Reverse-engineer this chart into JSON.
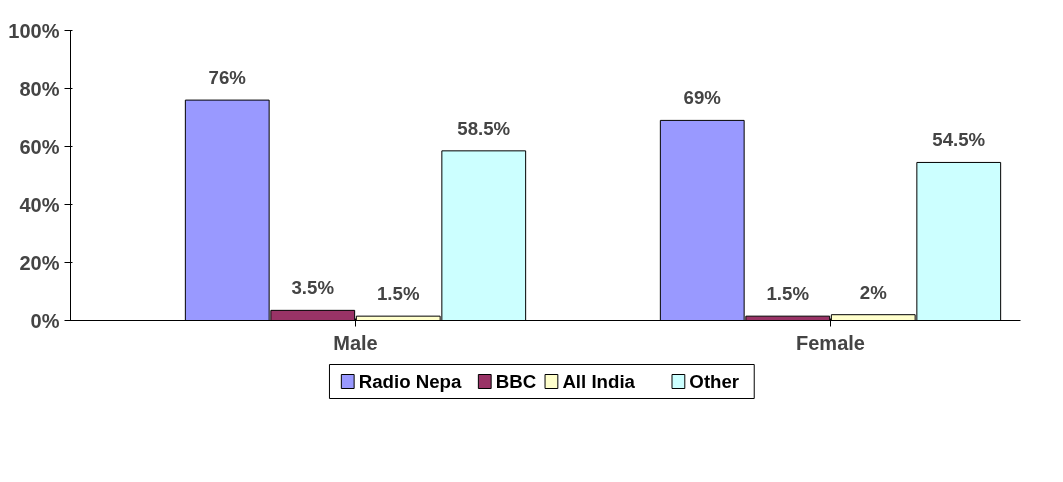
{
  "chart_data": {
    "type": "bar",
    "categories": [
      "Male",
      "Female"
    ],
    "series": [
      {
        "name": "Radio Nepa",
        "color": "#9999ff",
        "values": [
          76,
          69
        ],
        "value_labels": [
          "76%",
          "69%"
        ]
      },
      {
        "name": "BBC",
        "color": "#993366",
        "values": [
          3.5,
          1.5
        ],
        "value_labels": [
          "3.5%",
          "1.5%"
        ]
      },
      {
        "name": "All India",
        "color": "#ffffcc",
        "values": [
          1.5,
          2
        ],
        "value_labels": [
          "1.5%",
          "2%"
        ]
      },
      {
        "name": "Other",
        "color": "#ccffff",
        "values": [
          58.5,
          54.5
        ],
        "value_labels": [
          "58.5%",
          "54.5%"
        ]
      }
    ],
    "ylim": [
      0,
      100
    ],
    "yticks": [
      {
        "value": 0,
        "label": "0%"
      },
      {
        "value": 20,
        "label": "20%"
      },
      {
        "value": 40,
        "label": "40%"
      },
      {
        "value": 60,
        "label": "60%"
      },
      {
        "value": 80,
        "label": "80%"
      },
      {
        "value": 100,
        "label": "100%"
      }
    ],
    "grid": false,
    "legend": "bottom"
  }
}
